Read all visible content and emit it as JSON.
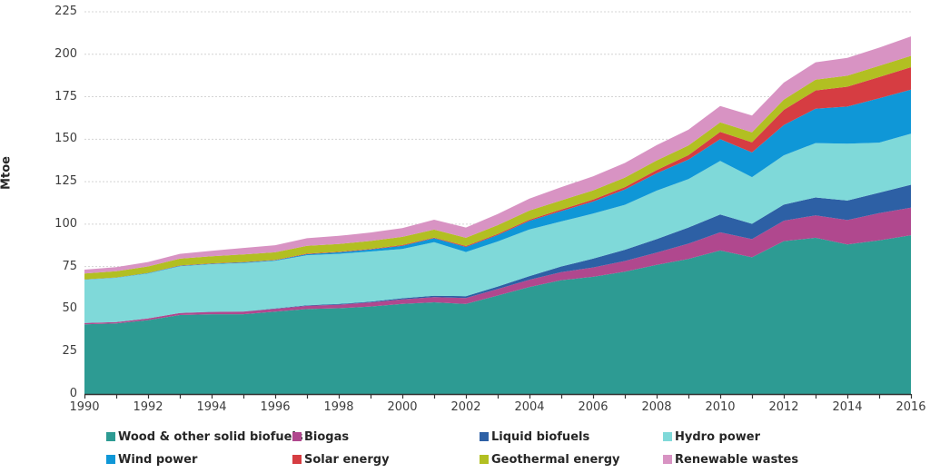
{
  "chart_data": {
    "type": "area",
    "stacked": true,
    "title": "",
    "xlabel": "",
    "ylabel": "Mtoe",
    "ylim": [
      0,
      225
    ],
    "ytick_step": 25,
    "grid": "horizontal-dashed",
    "legend_position": "bottom",
    "x": [
      1990,
      1991,
      1992,
      1993,
      1994,
      1995,
      1996,
      1997,
      1998,
      1999,
      2000,
      2001,
      2002,
      2003,
      2004,
      2005,
      2006,
      2007,
      2008,
      2009,
      2010,
      2011,
      2012,
      2013,
      2014,
      2015,
      2016
    ],
    "xtick_label_every": 2,
    "series": [
      {
        "name": "Wood & other solid biofuels",
        "color": "#2D9B93",
        "values": [
          41,
          41.5,
          43.5,
          46.5,
          47,
          47,
          48.5,
          50,
          50.5,
          51.5,
          53,
          54,
          53,
          58,
          63,
          67,
          69,
          72,
          76,
          79.5,
          84.5,
          80.5,
          90,
          92,
          88,
          90.5,
          93.5
        ]
      },
      {
        "name": "Biogas",
        "color": "#B0488E",
        "values": [
          0.8,
          0.9,
          1,
          1.2,
          1.3,
          1.5,
          1.7,
          1.9,
          2.1,
          2.4,
          2.7,
          3,
          3.5,
          3.8,
          4.3,
          4.8,
          5.5,
          6.3,
          7.2,
          9,
          10.7,
          10.7,
          12,
          13.2,
          14.4,
          16,
          16.2
        ]
      },
      {
        "name": "Liquid biofuels",
        "color": "#2D60A5",
        "values": [
          0,
          0,
          0,
          0,
          0.1,
          0.1,
          0.2,
          0.3,
          0.4,
          0.5,
          0.7,
          0.9,
          1.1,
          1.5,
          2.1,
          3.3,
          5.2,
          6.6,
          8,
          9.5,
          10.5,
          9,
          9.5,
          10.5,
          11.5,
          12,
          13.5
        ]
      },
      {
        "name": "Hydro power",
        "color": "#7FD9D9",
        "values": [
          25.5,
          26,
          26.5,
          27.5,
          28,
          28.5,
          28,
          29.5,
          29.5,
          29.5,
          29,
          31.5,
          26,
          26.5,
          27.5,
          26.5,
          26.5,
          26.5,
          28.5,
          28.5,
          31.5,
          27.5,
          29,
          32,
          33.5,
          29.5,
          30
        ]
      },
      {
        "name": "Wind power",
        "color": "#0F97D7",
        "values": [
          0.1,
          0.1,
          0.2,
          0.3,
          0.3,
          0.4,
          0.4,
          0.6,
          0.9,
          1.2,
          1.9,
          2.3,
          3,
          3.8,
          5,
          6.1,
          7.1,
          9,
          10.2,
          11.5,
          12.8,
          14.5,
          17.8,
          20.3,
          21.8,
          26.1,
          26
        ]
      },
      {
        "name": "Solar energy",
        "color": "#D63D42",
        "values": [
          0.1,
          0.1,
          0.1,
          0.2,
          0.2,
          0.2,
          0.2,
          0.3,
          0.3,
          0.3,
          0.4,
          0.4,
          0.5,
          0.6,
          0.7,
          0.9,
          1.1,
          1.4,
          1.9,
          2.6,
          4.3,
          6,
          9,
          10.7,
          11.7,
          12.5,
          13.2
        ]
      },
      {
        "name": "Geothermal energy",
        "color": "#B2BF22",
        "values": [
          3.5,
          3.7,
          3.8,
          4,
          4.2,
          4.5,
          4.4,
          4.6,
          4.6,
          4.7,
          4.8,
          4.7,
          4.9,
          5.2,
          5.4,
          5.4,
          5.5,
          5.6,
          5.7,
          5.7,
          5.6,
          5.9,
          6,
          6.3,
          6.5,
          6.6,
          6.7
        ]
      },
      {
        "name": "Renewable wastes",
        "color": "#D893C3",
        "values": [
          2.2,
          2.4,
          2.6,
          2.8,
          3.2,
          3.8,
          4.2,
          4.5,
          4.8,
          5,
          5.2,
          5.8,
          6,
          6.5,
          7,
          7.8,
          8.2,
          8.6,
          9,
          9.3,
          9.7,
          9.8,
          10,
          10.3,
          10.5,
          10.7,
          11.4
        ]
      }
    ],
    "styling": {
      "grid_color": "#D4D4D4",
      "axis_color": "#333333",
      "tick_label_color": "#3d3d3d",
      "legend_text_color": "#262626",
      "background": "#ffffff"
    }
  }
}
